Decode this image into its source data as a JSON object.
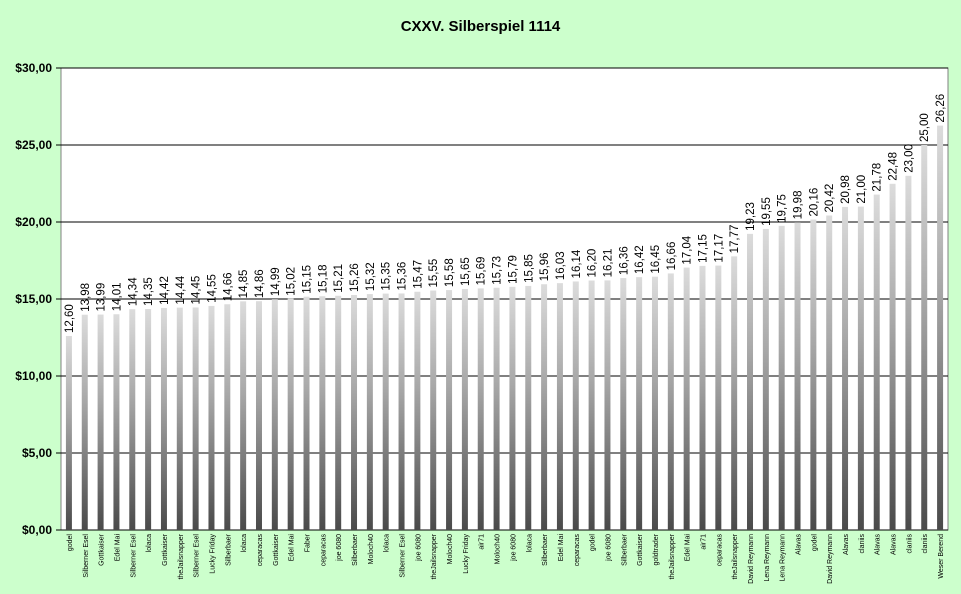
{
  "chart_data": {
    "type": "bar",
    "title": "CXXV. Silberspiel 1114",
    "xlabel": "",
    "ylabel": "",
    "ylim": [
      0,
      30
    ],
    "y_ticks": [
      {
        "value": 0,
        "label": "$0,00"
      },
      {
        "value": 5,
        "label": "$5,00"
      },
      {
        "value": 10,
        "label": "$10,00"
      },
      {
        "value": 15,
        "label": "$15,00"
      },
      {
        "value": 20,
        "label": "$20,00"
      },
      {
        "value": 25,
        "label": "$25,00"
      },
      {
        "value": 30,
        "label": "$30,00"
      }
    ],
    "grid": true,
    "legend": "none",
    "colors": {
      "background": "#ccffcc",
      "plot_area": "#ffffff",
      "bar_dark": "#4a4a4a",
      "bar_light": "#d8d8d8",
      "gridline": "#000000"
    },
    "categories": [
      "godel",
      "Silberner Esel",
      "Gottkaiser",
      "Edel Mai",
      "Silberner Esel",
      "lolaca",
      "Gottkaiser",
      "theJailsnapper",
      "Silberner Esel",
      "Lucky Friday",
      "Silberbaer",
      "lolaca",
      "ceparacas",
      "Gottkaiser",
      "Edel Mai",
      "Faber",
      "ceparacas",
      "joe 6080",
      "Silberbaer",
      "Moloch40",
      "lolaca",
      "Silberner Esel",
      "joe 6080",
      "theJailsnapper",
      "Moloch40",
      "Lucky Friday",
      "air71",
      "Moloch40",
      "joe 6080",
      "lolaca",
      "Silberbaer",
      "Edel Mai",
      "ceparacas",
      "godel",
      "joe 6080",
      "Silberbaer",
      "Gottkaiser",
      "goldtrader",
      "theJailsnapper",
      "Edel Mai",
      "air71",
      "ceparacas",
      "theJailsnapper",
      "David Reymann",
      "Lena Reymann",
      "Lena Reymann",
      "Alavas",
      "godel",
      "David Reymann",
      "Alavas",
      "claniis",
      "Alavas",
      "Alavas",
      "claniis",
      "claniis",
      "Weser Berend"
    ],
    "values": [
      12.6,
      13.98,
      13.99,
      14.01,
      14.34,
      14.35,
      14.42,
      14.44,
      14.45,
      14.55,
      14.66,
      14.85,
      14.86,
      14.99,
      15.02,
      15.15,
      15.18,
      15.21,
      15.26,
      15.32,
      15.35,
      15.36,
      15.47,
      15.55,
      15.58,
      15.65,
      15.69,
      15.73,
      15.79,
      15.85,
      15.96,
      16.03,
      16.14,
      16.2,
      16.21,
      16.36,
      16.42,
      16.45,
      16.66,
      17.04,
      17.15,
      17.17,
      17.77,
      19.23,
      19.55,
      19.75,
      19.98,
      20.16,
      20.42,
      20.98,
      21.0,
      21.78,
      22.48,
      23.0,
      25.0,
      26.26
    ],
    "value_labels": [
      "12,60",
      "13,98",
      "13,99",
      "14,01",
      "14,34",
      "14,35",
      "14,42",
      "14,44",
      "14,45",
      "14,55",
      "14,66",
      "14,85",
      "14,86",
      "14,99",
      "15,02",
      "15,15",
      "15,18",
      "15,21",
      "15,26",
      "15,32",
      "15,35",
      "15,36",
      "15,47",
      "15,55",
      "15,58",
      "15,65",
      "15,69",
      "15,73",
      "15,79",
      "15,85",
      "15,96",
      "16,03",
      "16,14",
      "16,20",
      "16,21",
      "16,36",
      "16,42",
      "16,45",
      "16,66",
      "17,04",
      "17,15",
      "17,17",
      "17,77",
      "19,23",
      "19,55",
      "19,75",
      "19,98",
      "20,16",
      "20,42",
      "20,98",
      "21,00",
      "21,78",
      "22,48",
      "23,00",
      "25,00",
      "26,26"
    ]
  }
}
